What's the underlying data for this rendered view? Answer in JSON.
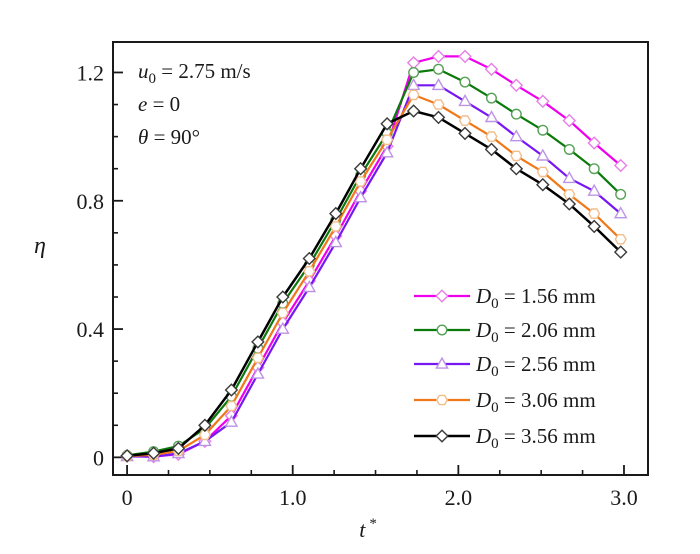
{
  "figure": {
    "background": "#ffffff",
    "axis_color": "#1a1a1a",
    "annotations": [
      {
        "sym": "u",
        "sub": "0",
        "rest": " = 2.75 m/s"
      },
      {
        "sym": "e",
        "sub": "",
        "rest": " = 0"
      },
      {
        "sym": "θ",
        "sub": "",
        "rest": " = 90°"
      }
    ]
  },
  "chart_data": {
    "type": "line",
    "title": "",
    "ylabel": "η",
    "xlabel_sym": "t",
    "xlabel_sup": "*",
    "xlim": [
      -0.085,
      3.145
    ],
    "ylim": [
      -0.055,
      1.295
    ],
    "grid": false,
    "legend_position": "lower right",
    "x_major_ticks": [
      0,
      1.0,
      2.0,
      3.0
    ],
    "x_tick_labels": [
      "0",
      "1.0",
      "2.0",
      "3.0"
    ],
    "x_minor_step": 0.25,
    "y_major_ticks": [
      0,
      0.4,
      0.8,
      1.2
    ],
    "y_tick_labels": [
      "0",
      "0.4",
      "0.8",
      "1.2"
    ],
    "y_minor_step": 0.1,
    "x": [
      0,
      0.16,
      0.31,
      0.47,
      0.63,
      0.79,
      0.94,
      1.1,
      1.26,
      1.41,
      1.57,
      1.73,
      1.88,
      2.04,
      2.2,
      2.35,
      2.51,
      2.67,
      2.82,
      2.98
    ],
    "series": [
      {
        "name": "D0 = 1.56 mm",
        "label_sym": "D",
        "label_sub": "0",
        "label_rest": " = 1.56 mm",
        "color": "#EE00EE",
        "marker": "diamond",
        "marker_edge": "#E87FE8",
        "values": [
          0.004,
          0.002,
          0.01,
          0.05,
          0.13,
          0.28,
          0.42,
          0.55,
          0.69,
          0.83,
          0.97,
          1.23,
          1.25,
          1.25,
          1.21,
          1.16,
          1.11,
          1.05,
          0.98,
          0.91
        ]
      },
      {
        "name": "D0 = 2.06 mm",
        "label_sym": "D",
        "label_sub": "0",
        "label_rest": " = 2.06 mm",
        "color": "#0B7A0B",
        "marker": "circle",
        "marker_edge": "#55A055",
        "values": [
          0.006,
          0.018,
          0.035,
          0.09,
          0.19,
          0.34,
          0.48,
          0.6,
          0.74,
          0.88,
          1.01,
          1.2,
          1.21,
          1.17,
          1.12,
          1.07,
          1.02,
          0.96,
          0.9,
          0.82
        ]
      },
      {
        "name": "D0 = 2.56 mm",
        "label_sym": "D",
        "label_sub": "0",
        "label_rest": " = 2.56 mm",
        "color": "#7717F2",
        "marker": "triangle",
        "marker_edge": "#BD93E6",
        "values": [
          0.003,
          0.002,
          0.012,
          0.05,
          0.11,
          0.26,
          0.4,
          0.53,
          0.67,
          0.81,
          0.95,
          1.16,
          1.16,
          1.11,
          1.06,
          1.0,
          0.94,
          0.87,
          0.83,
          0.76
        ]
      },
      {
        "name": "D0 = 3.06 mm",
        "label_sym": "D",
        "label_sub": "0",
        "label_rest": " = 3.06 mm",
        "color": "#F07818",
        "marker": "hexagon",
        "marker_edge": "#F2BE8C",
        "values": [
          0.004,
          0.008,
          0.02,
          0.07,
          0.16,
          0.31,
          0.45,
          0.58,
          0.72,
          0.86,
          0.99,
          1.13,
          1.1,
          1.05,
          1.0,
          0.94,
          0.89,
          0.82,
          0.76,
          0.68
        ]
      },
      {
        "name": "D0 = 3.56 mm",
        "label_sym": "D",
        "label_sub": "0",
        "label_rest": " = 3.56 mm",
        "color": "#000000",
        "marker": "diamond",
        "marker_edge": "#3A3A3A",
        "values": [
          0.005,
          0.013,
          0.028,
          0.1,
          0.21,
          0.36,
          0.5,
          0.62,
          0.76,
          0.9,
          1.04,
          1.08,
          1.06,
          1.01,
          0.96,
          0.9,
          0.85,
          0.79,
          0.72,
          0.64
        ]
      }
    ]
  }
}
